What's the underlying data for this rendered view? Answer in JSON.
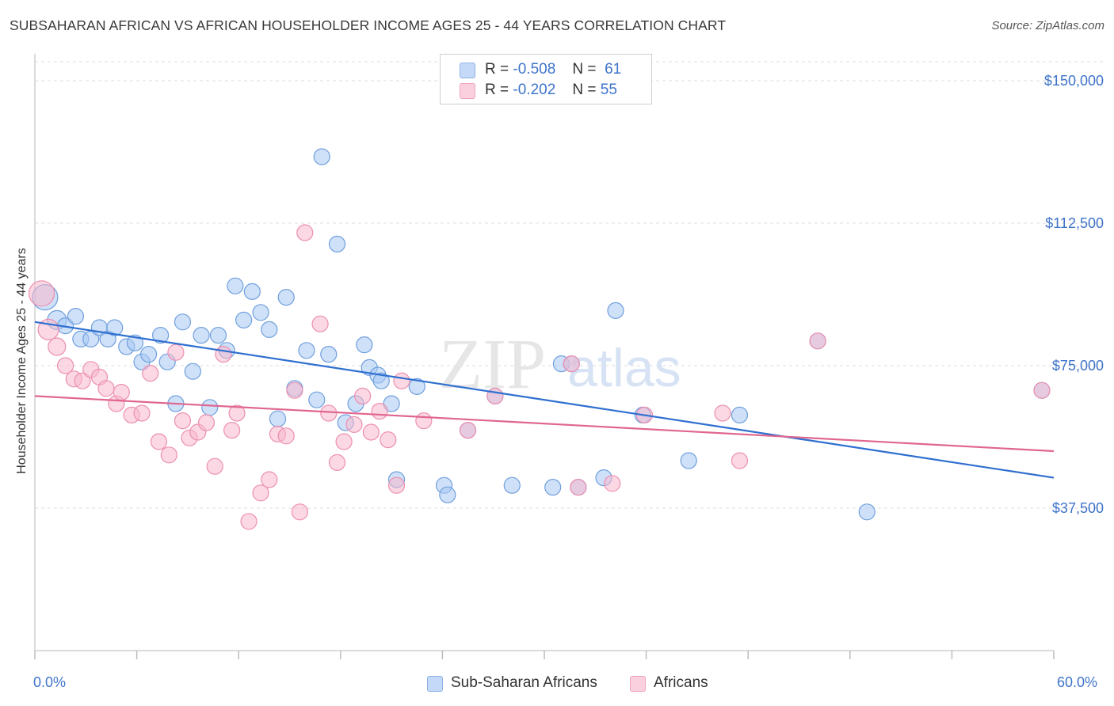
{
  "title": "SUBSAHARAN AFRICAN VS AFRICAN HOUSEHOLDER INCOME AGES 25 - 44 YEARS CORRELATION CHART",
  "source": "Source: ZipAtlas.com",
  "watermark": {
    "zip": "ZIP",
    "atlas": "atlas"
  },
  "legend": {
    "rows": [
      {
        "r_label": "R =",
        "r_value": "-0.508",
        "n_label": "N =",
        "n_value": "61",
        "color": "#a8c8f4"
      },
      {
        "r_label": "R =",
        "r_value": "-0.202",
        "n_label": "N =",
        "n_value": "55",
        "color": "#f7b8cc"
      }
    ]
  },
  "bottom_legend": [
    {
      "label": "Sub-Saharan Africans",
      "color": "#a8c8f4"
    },
    {
      "label": "Africans",
      "color": "#f7b8cc"
    }
  ],
  "chart_data": {
    "type": "scatter",
    "title": "SUBSAHARAN AFRICAN VS AFRICAN HOUSEHOLDER INCOME AGES 25 - 44 YEARS CORRELATION CHART",
    "xlabel": "",
    "ylabel": "Householder Income Ages 25 - 44 years",
    "xlim": [
      0,
      60
    ],
    "ylim": [
      0,
      155000
    ],
    "x_tick_labels": [
      "0.0%",
      "60.0%"
    ],
    "y_ticks": [
      37500,
      75000,
      112500,
      150000
    ],
    "y_tick_labels": [
      "$37,500",
      "$75,000",
      "$112,500",
      "$150,000"
    ],
    "grid": true,
    "legend_position": "top-center",
    "series": [
      {
        "name": "Sub-Saharan Africans",
        "color": "#a8c8f4",
        "stroke": "#6f9fdc",
        "trend": {
          "x": [
            0,
            60
          ],
          "y": [
            86500,
            45500
          ],
          "color": "#2f6fd0"
        },
        "points": [
          [
            0.6,
            93000,
            16
          ],
          [
            1.3,
            87000,
            12
          ],
          [
            1.8,
            85500,
            10
          ],
          [
            2.4,
            88000,
            10
          ],
          [
            2.7,
            82000,
            10
          ],
          [
            3.3,
            82000,
            10
          ],
          [
            3.8,
            85000,
            10
          ],
          [
            4.3,
            82000,
            10
          ],
          [
            4.7,
            85000,
            10
          ],
          [
            5.4,
            80000,
            10
          ],
          [
            5.9,
            81000,
            10
          ],
          [
            6.3,
            76000,
            10
          ],
          [
            6.7,
            78000,
            10
          ],
          [
            7.4,
            83000,
            10
          ],
          [
            7.8,
            76000,
            10
          ],
          [
            8.3,
            65000,
            10
          ],
          [
            8.7,
            86500,
            10
          ],
          [
            9.3,
            73500,
            10
          ],
          [
            9.8,
            83000,
            10
          ],
          [
            10.3,
            64000,
            10
          ],
          [
            10.8,
            83000,
            10
          ],
          [
            11.3,
            79000,
            10
          ],
          [
            11.8,
            96000,
            10
          ],
          [
            12.3,
            87000,
            10
          ],
          [
            12.8,
            94500,
            10
          ],
          [
            13.3,
            89000,
            10
          ],
          [
            13.8,
            84500,
            10
          ],
          [
            14.3,
            61000,
            10
          ],
          [
            14.8,
            93000,
            10
          ],
          [
            15.3,
            69000,
            10
          ],
          [
            16.0,
            79000,
            10
          ],
          [
            16.9,
            130000,
            10
          ],
          [
            16.6,
            66000,
            10
          ],
          [
            17.3,
            78000,
            10
          ],
          [
            17.8,
            107000,
            10
          ],
          [
            18.3,
            60000,
            10
          ],
          [
            18.9,
            65000,
            10
          ],
          [
            19.4,
            80500,
            10
          ],
          [
            19.7,
            74500,
            10
          ],
          [
            20.2,
            72500,
            10
          ],
          [
            20.4,
            71000,
            10
          ],
          [
            21.0,
            65000,
            10
          ],
          [
            21.3,
            45000,
            10
          ],
          [
            22.5,
            69500,
            10
          ],
          [
            24.1,
            43500,
            10
          ],
          [
            24.3,
            41000,
            10
          ],
          [
            28.1,
            43500,
            10
          ],
          [
            30.5,
            43000,
            10
          ],
          [
            31.0,
            75500,
            10
          ],
          [
            31.6,
            75500,
            10
          ],
          [
            33.5,
            45500,
            10
          ],
          [
            34.2,
            89500,
            10
          ],
          [
            35.8,
            62000,
            10
          ],
          [
            41.5,
            62000,
            10
          ],
          [
            46.1,
            81500,
            10
          ],
          [
            49.0,
            36500,
            10
          ],
          [
            59.3,
            68500,
            10
          ],
          [
            27.1,
            67000,
            10
          ],
          [
            25.5,
            58000,
            10
          ],
          [
            38.5,
            50000,
            10
          ],
          [
            32.0,
            43000,
            10
          ]
        ]
      },
      {
        "name": "Africans",
        "color": "#f7b8cc",
        "stroke": "#ec8fb0",
        "trend": {
          "x": [
            0,
            60
          ],
          "y": [
            67000,
            52500
          ],
          "color": "#e0668f"
        },
        "points": [
          [
            0.4,
            94000,
            16
          ],
          [
            0.8,
            84500,
            13
          ],
          [
            1.3,
            80000,
            11
          ],
          [
            1.8,
            75000,
            10
          ],
          [
            2.3,
            71500,
            10
          ],
          [
            2.8,
            71000,
            10
          ],
          [
            3.3,
            74000,
            10
          ],
          [
            3.8,
            72000,
            10
          ],
          [
            4.2,
            69000,
            10
          ],
          [
            4.8,
            65000,
            10
          ],
          [
            5.1,
            68000,
            10
          ],
          [
            5.7,
            62000,
            10
          ],
          [
            6.3,
            62500,
            10
          ],
          [
            6.8,
            73000,
            10
          ],
          [
            7.3,
            55000,
            10
          ],
          [
            7.9,
            51500,
            10
          ],
          [
            8.3,
            78500,
            10
          ],
          [
            8.7,
            60500,
            10
          ],
          [
            9.1,
            56000,
            10
          ],
          [
            9.6,
            57500,
            10
          ],
          [
            10.1,
            60000,
            10
          ],
          [
            10.6,
            48500,
            10
          ],
          [
            11.1,
            78000,
            10
          ],
          [
            11.6,
            58000,
            10
          ],
          [
            11.9,
            62500,
            10
          ],
          [
            12.6,
            34000,
            10
          ],
          [
            13.3,
            41500,
            10
          ],
          [
            13.8,
            45000,
            10
          ],
          [
            14.3,
            57000,
            10
          ],
          [
            14.8,
            56500,
            10
          ],
          [
            15.3,
            68500,
            10
          ],
          [
            15.6,
            36500,
            10
          ],
          [
            15.9,
            110000,
            10
          ],
          [
            16.8,
            86000,
            10
          ],
          [
            17.3,
            62500,
            10
          ],
          [
            17.8,
            49500,
            10
          ],
          [
            18.2,
            55000,
            10
          ],
          [
            18.8,
            59500,
            10
          ],
          [
            19.3,
            67000,
            10
          ],
          [
            19.8,
            57500,
            10
          ],
          [
            20.3,
            63000,
            10
          ],
          [
            20.8,
            55500,
            10
          ],
          [
            21.3,
            43500,
            10
          ],
          [
            21.6,
            71000,
            10
          ],
          [
            22.9,
            60500,
            10
          ],
          [
            25.5,
            58000,
            10
          ],
          [
            27.1,
            67000,
            10
          ],
          [
            32.0,
            43000,
            10
          ],
          [
            31.6,
            75500,
            10
          ],
          [
            34.0,
            44000,
            10
          ],
          [
            35.9,
            62000,
            10
          ],
          [
            40.5,
            62500,
            10
          ],
          [
            41.5,
            50000,
            10
          ],
          [
            46.1,
            81500,
            10
          ],
          [
            59.3,
            68500,
            10
          ]
        ]
      }
    ]
  }
}
